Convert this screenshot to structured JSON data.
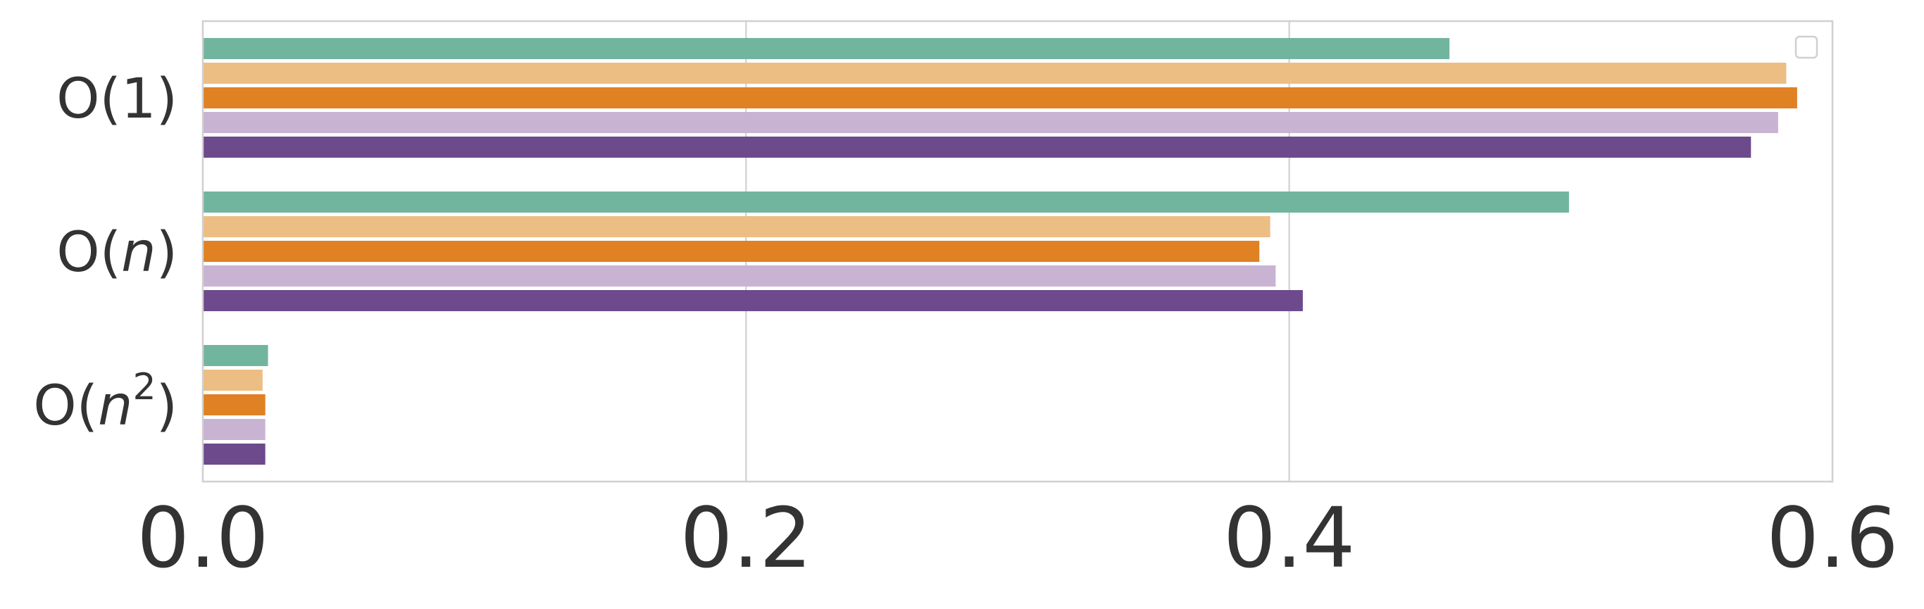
{
  "chart_data": {
    "type": "bar",
    "orientation": "horizontal",
    "title": "",
    "xlabel": "",
    "ylabel": "",
    "categories": [
      "O(1)",
      "O(n)",
      "O(n²)"
    ],
    "category_labels": [
      {
        "pre": "O(",
        "italic": "",
        "sup": "",
        "post": "1)"
      },
      {
        "pre": "O(",
        "italic": "n",
        "sup": "",
        "post": ")"
      },
      {
        "pre": "O(",
        "italic": "n",
        "sup": "2",
        "post": ")"
      }
    ],
    "series": [
      {
        "color": "#72b59f",
        "values": [
          0.459,
          0.503,
          0.024
        ]
      },
      {
        "color": "#ecbe84",
        "values": [
          0.583,
          0.393,
          0.022
        ]
      },
      {
        "color": "#e08124",
        "values": [
          0.587,
          0.389,
          0.023
        ]
      },
      {
        "color": "#c9b3d3",
        "values": [
          0.58,
          0.395,
          0.023
        ]
      },
      {
        "color": "#6d4a8c",
        "values": [
          0.57,
          0.405,
          0.023
        ]
      }
    ],
    "xlim": [
      0.0,
      0.6
    ],
    "xticks": [
      "0.0",
      "0.2",
      "0.4",
      "0.6"
    ],
    "grid": "x",
    "legend": {
      "placement": "top-right",
      "entries": []
    }
  }
}
